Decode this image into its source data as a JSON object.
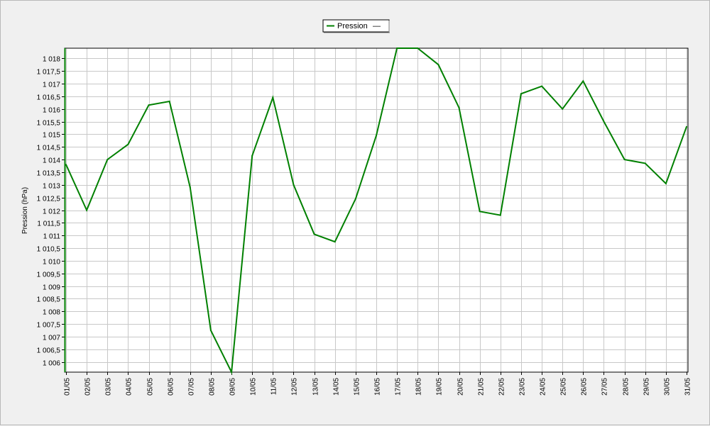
{
  "chart_data": {
    "type": "line",
    "ylabel": "Pression (hPa)",
    "xlabel": "",
    "ylim": [
      1005.6,
      1018.4
    ],
    "y_ticks": [
      {
        "value": 1006,
        "label": "1 006"
      },
      {
        "value": 1006.5,
        "label": "1 006,5"
      },
      {
        "value": 1007,
        "label": "1 007"
      },
      {
        "value": 1007.5,
        "label": "1 007,5"
      },
      {
        "value": 1008,
        "label": "1 008"
      },
      {
        "value": 1008.5,
        "label": "1 008,5"
      },
      {
        "value": 1009,
        "label": "1 009"
      },
      {
        "value": 1009.5,
        "label": "1 009,5"
      },
      {
        "value": 1010,
        "label": "1 010"
      },
      {
        "value": 1010.5,
        "label": "1 010,5"
      },
      {
        "value": 1011,
        "label": "1 011"
      },
      {
        "value": 1011.5,
        "label": "1 011,5"
      },
      {
        "value": 1012,
        "label": "1 012"
      },
      {
        "value": 1012.5,
        "label": "1 012,5"
      },
      {
        "value": 1013,
        "label": "1 013"
      },
      {
        "value": 1013.5,
        "label": "1 013,5"
      },
      {
        "value": 1014,
        "label": "1 014"
      },
      {
        "value": 1014.5,
        "label": "1 014,5"
      },
      {
        "value": 1015,
        "label": "1 015"
      },
      {
        "value": 1015.5,
        "label": "1 015,5"
      },
      {
        "value": 1016,
        "label": "1 016"
      },
      {
        "value": 1016.5,
        "label": "1 016,5"
      },
      {
        "value": 1017,
        "label": "1 017"
      },
      {
        "value": 1017.5,
        "label": "1 017,5"
      },
      {
        "value": 1018,
        "label": "1 018"
      }
    ],
    "categories": [
      "01/05",
      "02/05",
      "03/05",
      "04/05",
      "05/05",
      "06/05",
      "07/05",
      "08/05",
      "09/05",
      "10/05",
      "11/05",
      "12/05",
      "13/05",
      "14/05",
      "15/05",
      "16/05",
      "17/05",
      "18/05",
      "19/05",
      "20/05",
      "21/05",
      "22/05",
      "23/05",
      "24/05",
      "25/05",
      "26/05",
      "27/05",
      "28/05",
      "29/05",
      "30/05",
      "31/05"
    ],
    "series": [
      {
        "name": "Pression",
        "color": "#008000",
        "values": [
          1013.8,
          1012.0,
          1014.0,
          1014.6,
          1016.15,
          1016.3,
          1012.9,
          1007.25,
          1005.6,
          1014.15,
          1016.45,
          1013.0,
          1011.05,
          1010.75,
          1012.45,
          1014.95,
          1018.4,
          1018.4,
          1017.75,
          1016.05,
          1011.95,
          1011.8,
          1016.6,
          1016.9,
          1016.0,
          1017.1,
          1015.5,
          1014.0,
          1013.85,
          1013.05,
          1015.3
        ]
      }
    ],
    "grid": true,
    "legend_position": "top-center",
    "legend_marker": "—"
  }
}
